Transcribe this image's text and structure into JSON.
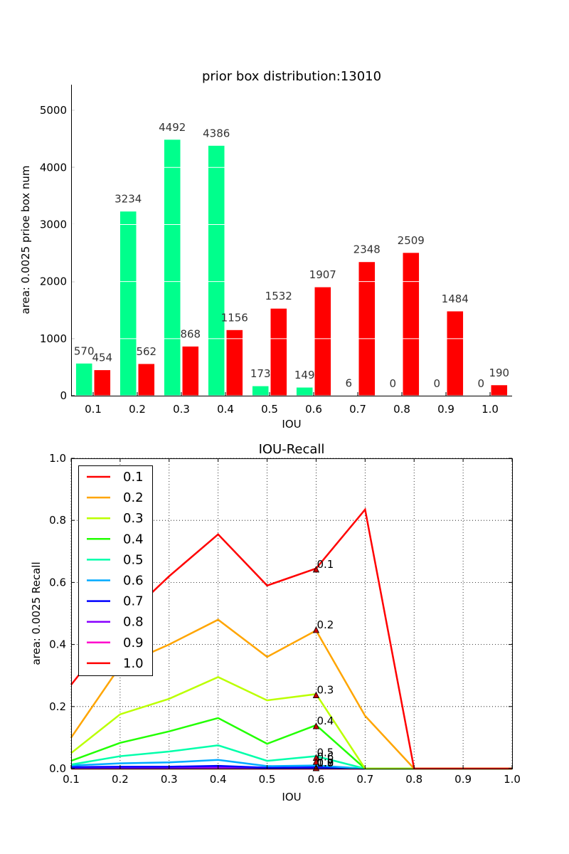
{
  "chart_data": [
    {
      "type": "bar",
      "title": "prior box distribution:13010",
      "xlabel": "IOU",
      "ylabel": "area: 0.0025 prioe box num",
      "categories": [
        "0.1",
        "0.2",
        "0.3",
        "0.4",
        "0.5",
        "0.6",
        "0.7",
        "0.8",
        "0.9",
        "1.0"
      ],
      "ylim": [
        0,
        5450
      ],
      "yticks": [
        0,
        1000,
        2000,
        3000,
        4000,
        5000
      ],
      "grid": false,
      "series": [
        {
          "color": "#00ff8c",
          "values": [
            570,
            3234,
            4492,
            4386,
            173,
            149,
            6,
            0,
            0,
            0
          ]
        },
        {
          "color": "#ff0000",
          "values": [
            454,
            562,
            868,
            1156,
            1532,
            1907,
            2348,
            2509,
            1484,
            190
          ]
        }
      ]
    },
    {
      "type": "line",
      "title": "IOU-Recall",
      "xlabel": "IOU",
      "ylabel": "area: 0.0025 Recall",
      "x": [
        0.1,
        0.2,
        0.3,
        0.4,
        0.5,
        0.6,
        0.7,
        0.8,
        0.9,
        1.0
      ],
      "xlim": [
        0.1,
        1.0
      ],
      "ylim": [
        0,
        1.0
      ],
      "xticks": [
        "0.1",
        "0.2",
        "0.3",
        "0.4",
        "0.5",
        "0.6",
        "0.7",
        "0.8",
        "0.9",
        "1.0"
      ],
      "yticks": [
        "0.0",
        "0.2",
        "0.4",
        "0.6",
        "0.8",
        "1.0"
      ],
      "grid": true,
      "legend_position": "upper-left",
      "series": [
        {
          "name": "0.1",
          "color": "#ff0000",
          "values": [
            0.27,
            0.47,
            0.62,
            0.755,
            0.59,
            0.645,
            0.835,
            0.0,
            0.0,
            0.0
          ],
          "marker": {
            "x": 0.6,
            "y": 0.64,
            "label": "0.1"
          }
        },
        {
          "name": "0.2",
          "color": "#ffa500",
          "values": [
            0.1,
            0.33,
            0.4,
            0.48,
            0.36,
            0.445,
            0.17,
            0.0,
            0.0,
            0.0
          ],
          "marker": {
            "x": 0.6,
            "y": 0.445,
            "label": "0.2"
          }
        },
        {
          "name": "0.3",
          "color": "#bbff00",
          "values": [
            0.05,
            0.175,
            0.225,
            0.295,
            0.22,
            0.24,
            0.0,
            0.0,
            0.0,
            0.0
          ],
          "marker": {
            "x": 0.6,
            "y": 0.235,
            "label": "0.3"
          }
        },
        {
          "name": "0.4",
          "color": "#22ff00",
          "values": [
            0.025,
            0.083,
            0.12,
            0.163,
            0.08,
            0.14,
            0.0,
            0.0,
            0.0,
            0.0
          ],
          "marker": {
            "x": 0.6,
            "y": 0.135,
            "label": "0.4"
          }
        },
        {
          "name": "0.5",
          "color": "#00ffaa",
          "values": [
            0.013,
            0.04,
            0.055,
            0.075,
            0.025,
            0.04,
            0.0,
            0.0,
            0.0,
            0.0
          ],
          "marker": {
            "x": 0.6,
            "y": 0.033,
            "label": "0.5"
          }
        },
        {
          "name": "0.6",
          "color": "#00aaff",
          "values": [
            0.01,
            0.017,
            0.02,
            0.028,
            0.008,
            0.01,
            0.0,
            0.0,
            0.0,
            0.0
          ],
          "marker": {
            "x": 0.6,
            "y": 0.02,
            "label": "0.6"
          }
        },
        {
          "name": "0.7",
          "color": "#0000ff",
          "values": [
            0.005,
            0.006,
            0.006,
            0.009,
            0.003,
            0.004,
            0.0,
            0.0,
            0.0,
            0.0
          ],
          "marker": {
            "x": 0.6,
            "y": 0.0,
            "label": "0.7"
          }
        },
        {
          "name": "0.8",
          "color": "#8800ff",
          "values": [
            0.002,
            0.002,
            0.002,
            0.004,
            0.001,
            0.001,
            0.0,
            0.0,
            0.0,
            0.0
          ],
          "marker": {
            "x": 0.6,
            "y": 0.0,
            "label": "0.8"
          }
        },
        {
          "name": "0.9",
          "color": "#ff00cc",
          "values": [
            0.001,
            0.001,
            0.001,
            0.001,
            0.0,
            0.0,
            0.0,
            0.0,
            0.0,
            0.0
          ],
          "marker": {
            "x": 0.6,
            "y": 0.0,
            "label": "0.9"
          }
        },
        {
          "name": "1.0",
          "color": "#ff0000",
          "values": [
            0.0,
            0.0,
            0.0,
            0.0,
            0.0,
            0.0,
            0.0,
            0.0,
            0.0,
            0.0
          ],
          "marker": {
            "x": 0.6,
            "y": 0.0,
            "label": "1.0"
          }
        }
      ]
    }
  ]
}
